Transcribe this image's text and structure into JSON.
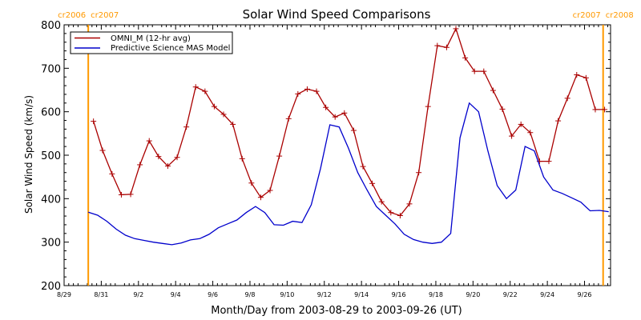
{
  "chart_data": {
    "type": "line",
    "title": "Solar Wind Speed Comparisons",
    "xlabel": "Month/Day from 2003-08-29 to 2003-09-26 (UT)",
    "ylabel": "Solar Wind Speed (km/s)",
    "x_start": "2003-08-29",
    "x_end": "2003-09-26",
    "xlim": [
      0,
      29.4
    ],
    "ylim": [
      200,
      800
    ],
    "y_ticks": [
      200,
      300,
      400,
      500,
      600,
      700,
      800
    ],
    "x_ticks": [
      {
        "x": 0,
        "label": "8/29"
      },
      {
        "x": 2,
        "label": "8/31"
      },
      {
        "x": 4,
        "label": "9/2"
      },
      {
        "x": 6,
        "label": "9/4"
      },
      {
        "x": 8,
        "label": "9/6"
      },
      {
        "x": 10,
        "label": "9/8"
      },
      {
        "x": 12,
        "label": "9/10"
      },
      {
        "x": 14,
        "label": "9/12"
      },
      {
        "x": 16,
        "label": "9/14"
      },
      {
        "x": 18,
        "label": "9/16"
      },
      {
        "x": 20,
        "label": "9/18"
      },
      {
        "x": 22,
        "label": "9/20"
      },
      {
        "x": 24,
        "label": "9/22"
      },
      {
        "x": 26,
        "label": "9/24"
      },
      {
        "x": 28,
        "label": "9/26"
      }
    ],
    "legend": "top-left",
    "grid": false,
    "carrington_markers": [
      {
        "x": 1.3,
        "left_label": "cr2006",
        "right_label": "cr2007",
        "color": "#ff9900"
      },
      {
        "x": 29.0,
        "left_label": "cr2007",
        "right_label": "cr2008",
        "color": "#ff9900"
      }
    ],
    "series": [
      {
        "name": "OMNI_M (12-hr avg)",
        "color": "#aa0000",
        "marker": "plus",
        "x": [
          1.58,
          2.07,
          2.58,
          3.08,
          3.58,
          4.08,
          4.58,
          5.08,
          5.58,
          6.08,
          6.58,
          7.08,
          7.58,
          8.08,
          8.58,
          9.08,
          9.58,
          10.08,
          10.58,
          11.08,
          11.58,
          12.08,
          12.58,
          13.08,
          13.58,
          14.08,
          14.58,
          15.08,
          15.58,
          16.08,
          16.58,
          17.08,
          17.58,
          18.08,
          18.58,
          19.08,
          19.58,
          20.08,
          20.58,
          21.08,
          21.58,
          22.08,
          22.58,
          23.08,
          23.58,
          24.08,
          24.58,
          25.08,
          25.58,
          26.08,
          26.58,
          27.08,
          27.58,
          28.08,
          28.58,
          29.08
        ],
        "y": [
          578,
          511,
          457,
          409,
          410,
          478,
          533,
          497,
          475,
          495,
          565,
          657,
          647,
          612,
          594,
          571,
          492,
          436,
          403,
          419,
          498,
          584,
          641,
          652,
          647,
          610,
          588,
          597,
          557,
          474,
          435,
          393,
          368,
          361,
          388,
          460,
          612,
          752,
          748,
          791,
          724,
          693,
          693,
          649,
          606,
          544,
          571,
          552,
          486,
          486,
          579,
          631,
          685,
          678,
          605,
          605
        ]
      },
      {
        "name": "Predictive Science MAS Model",
        "color": "#0000cc",
        "marker": "none",
        "x": [
          1.3,
          1.8,
          2.3,
          2.8,
          3.3,
          3.8,
          4.3,
          4.8,
          5.3,
          5.8,
          6.3,
          6.8,
          7.3,
          7.8,
          8.3,
          8.8,
          9.3,
          9.8,
          10.3,
          10.8,
          11.3,
          11.8,
          12.3,
          12.8,
          13.3,
          13.8,
          14.3,
          14.8,
          15.3,
          15.8,
          16.3,
          16.8,
          17.3,
          17.8,
          18.3,
          18.8,
          19.3,
          19.8,
          20.3,
          20.8,
          21.3,
          21.8,
          22.3,
          22.8,
          23.3,
          23.8,
          24.3,
          24.8,
          25.3,
          25.8,
          26.3,
          26.8,
          27.3,
          27.8,
          28.3,
          28.8,
          29.3
        ],
        "y": [
          369,
          362,
          348,
          330,
          316,
          308,
          304,
          300,
          297,
          294,
          298,
          305,
          308,
          318,
          333,
          342,
          351,
          368,
          382,
          368,
          340,
          339,
          348,
          345,
          386,
          470,
          570,
          565,
          516,
          460,
          420,
          382,
          362,
          342,
          318,
          306,
          300,
          297,
          300,
          320,
          540,
          620,
          600,
          510,
          430,
          400,
          420,
          520,
          510,
          450,
          420,
          412,
          402,
          392,
          372,
          373,
          370
        ]
      }
    ]
  }
}
